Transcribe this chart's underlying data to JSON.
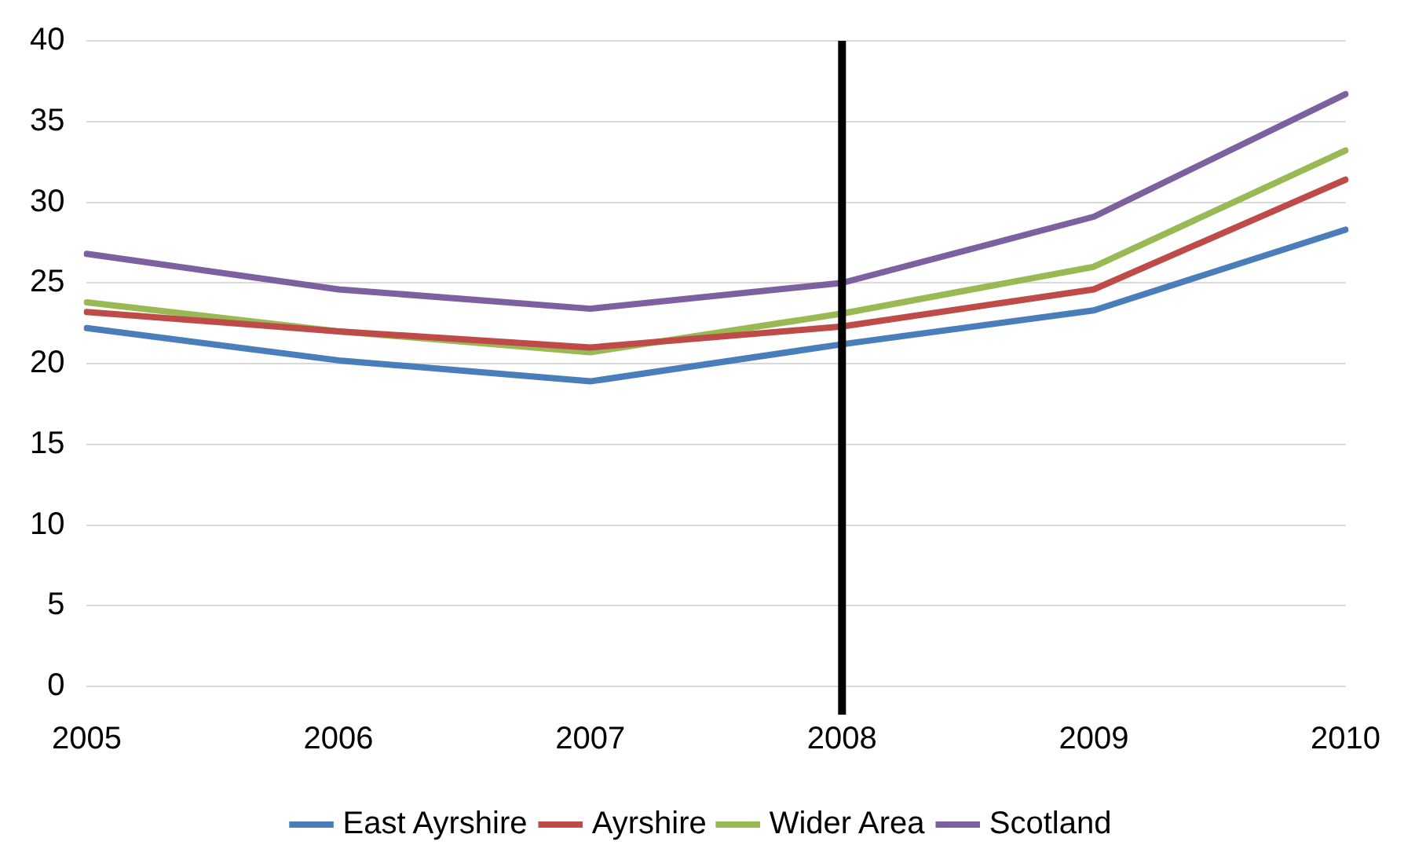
{
  "chart_data": {
    "type": "line",
    "categories": [
      "2005",
      "2006",
      "2007",
      "2008",
      "2009",
      "2010"
    ],
    "series": [
      {
        "name": "East Ayrshire",
        "color": "#4a7ebb",
        "values": [
          22.2,
          20.2,
          18.9,
          21.2,
          23.3,
          28.3
        ]
      },
      {
        "name": "Ayrshire",
        "color": "#be4b48",
        "values": [
          23.2,
          22.0,
          21.0,
          22.3,
          24.6,
          31.4
        ]
      },
      {
        "name": "Wider Area",
        "color": "#98b954",
        "values": [
          23.8,
          22.0,
          20.7,
          23.1,
          26.0,
          33.2
        ]
      },
      {
        "name": "Scotland",
        "color": "#7d60a0",
        "values": [
          26.8,
          24.6,
          23.4,
          25.0,
          29.1,
          36.7
        ]
      }
    ],
    "ylim": [
      0,
      40
    ],
    "yticks": [
      0,
      5,
      10,
      15,
      20,
      25,
      30,
      35,
      40
    ],
    "grid": "y",
    "legend": "bottom",
    "marker": "none",
    "line_style": "solid",
    "ref_lines": [
      {
        "axis": "x",
        "value": "2008",
        "color": "#000000"
      }
    ]
  }
}
